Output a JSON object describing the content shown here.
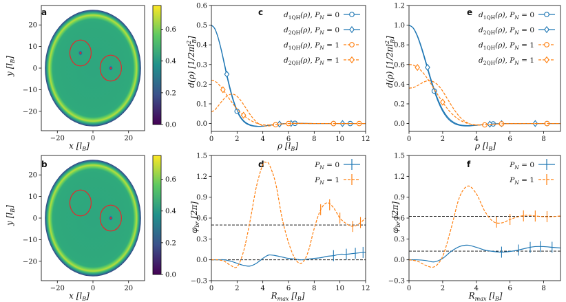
{
  "chart_data": [
    {
      "panel": "a",
      "type": "heatmap",
      "xlabel": "x [l_B]",
      "ylabel": "y [l_B]",
      "xlim": [
        -29,
        29
      ],
      "ylim": [
        -29,
        29
      ],
      "xticks": [
        -20,
        0,
        20
      ],
      "yticks": [
        -20,
        -10,
        0,
        10,
        20
      ],
      "colorbar": {
        "range": [
          0.0,
          0.75
        ],
        "ticks": [
          "0.0",
          "0.2",
          "0.4",
          "0.6"
        ]
      },
      "disk_radius": 27,
      "circles": [
        {
          "center": [
            -7,
            7
          ],
          "radius": 6
        },
        {
          "center": [
            10,
            0
          ],
          "radius": 6
        }
      ],
      "holes": [
        [
          -7,
          7
        ],
        [
          10,
          0
        ]
      ]
    },
    {
      "panel": "b",
      "type": "heatmap",
      "xlabel": "x [l_B]",
      "ylabel": "y [l_B]",
      "xlim": [
        -29,
        29
      ],
      "ylim": [
        -29,
        29
      ],
      "xticks": [
        -20,
        0,
        20
      ],
      "yticks": [
        -20,
        -10,
        0,
        10,
        20
      ],
      "colorbar": {
        "range": [
          0.0,
          0.75
        ],
        "ticks": [
          "0.0",
          "0.2",
          "0.4",
          "0.6"
        ]
      },
      "disk_radius": 27,
      "circles": [
        {
          "center": [
            -7,
            7
          ],
          "radius": 6
        },
        {
          "center": [
            10,
            0
          ],
          "radius": 6
        }
      ],
      "holes": [
        [
          10,
          0
        ]
      ]
    },
    {
      "panel": "c",
      "type": "line",
      "xlabel": "ρ [l_B]",
      "ylabel": "d(ρ) [1/2πl_B²]",
      "xlim": [
        0,
        12
      ],
      "ylim": [
        -0.04,
        0.6
      ],
      "xticks": [
        "0",
        "2",
        "4",
        "6",
        "8",
        "10",
        "12"
      ],
      "yticks": [
        "0.0",
        "0.1",
        "0.2",
        "0.3",
        "0.4",
        "0.5",
        "0.6"
      ],
      "x": [
        0,
        0.25,
        0.5,
        0.75,
        1,
        1.25,
        1.5,
        1.75,
        2,
        2.25,
        2.5,
        2.75,
        3,
        3.25,
        3.5,
        3.75,
        4,
        4.25,
        4.5,
        4.75,
        5,
        5.25,
        5.5,
        5.75,
        6,
        6.5,
        7,
        8,
        9,
        10,
        11,
        12
      ],
      "series": [
        {
          "name": "d_1QH(ρ), P_N = 0",
          "color": "#1f77b4",
          "dash": false,
          "marker": "circle",
          "marker_x": [
            2,
            6.5,
            9.5,
            10.8
          ],
          "values": [
            0.5,
            0.484,
            0.441,
            0.378,
            0.303,
            0.228,
            0.161,
            0.105,
            0.062,
            0.031,
            0.011,
            -0.002,
            -0.009,
            -0.013,
            -0.015,
            -0.015,
            -0.014,
            -0.012,
            -0.009,
            -0.006,
            -0.004,
            -0.002,
            -0.001,
            0.0,
            0.001,
            0.001,
            0.0,
            0.0,
            0.0,
            0.0,
            0.0,
            0.0
          ]
        },
        {
          "name": "d_2QH(ρ), P_N = 0",
          "color": "#1f77b4",
          "dash": false,
          "marker": "diamond",
          "marker_x": [
            1.2,
            5.3,
            6.2,
            10.2
          ],
          "values": [
            0.5,
            0.484,
            0.442,
            0.381,
            0.309,
            0.236,
            0.169,
            0.112,
            0.068,
            0.036,
            0.015,
            0.002,
            -0.006,
            -0.011,
            -0.013,
            -0.014,
            -0.013,
            -0.011,
            -0.009,
            -0.007,
            -0.005,
            -0.003,
            -0.002,
            -0.001,
            0.0,
            0.001,
            0.001,
            0.0,
            0.0,
            0.0,
            0.0,
            0.0
          ]
        },
        {
          "name": "d_1QH(ρ), P_N = 1",
          "color": "#ff7f0e",
          "dash": true,
          "marker": "circle",
          "marker_x": [
            5,
            6,
            9.5,
            11.5
          ],
          "values": [
            0.06,
            0.068,
            0.087,
            0.108,
            0.127,
            0.141,
            0.149,
            0.148,
            0.138,
            0.12,
            0.097,
            0.072,
            0.047,
            0.026,
            0.008,
            -0.004,
            -0.011,
            -0.013,
            -0.012,
            -0.009,
            -0.006,
            -0.004,
            -0.002,
            -0.001,
            0.0,
            0.001,
            0.001,
            0.0,
            0.0,
            0.0,
            0.0,
            0.0
          ]
        },
        {
          "name": "d_2QH(ρ), P_N = 1",
          "color": "#ff7f0e",
          "dash": true,
          "marker": "diamond",
          "marker_x": [
            0.9,
            2.5
          ],
          "values": [
            0.22,
            0.216,
            0.204,
            0.185,
            0.163,
            0.139,
            0.116,
            0.094,
            0.074,
            0.057,
            0.042,
            0.029,
            0.018,
            0.009,
            0.002,
            -0.003,
            -0.006,
            -0.007,
            -0.007,
            -0.006,
            -0.004,
            -0.003,
            -0.002,
            -0.001,
            0.0,
            0.0,
            0.0,
            0.0,
            0.0,
            0.0,
            0.0,
            0.0
          ]
        }
      ],
      "legend_loc": "upper right"
    },
    {
      "panel": "d",
      "type": "line",
      "xlabel": "R_max [l_B]",
      "ylabel": "φ_br [2π]",
      "xlim": [
        0,
        12
      ],
      "ylim": [
        -0.3,
        1.5
      ],
      "xticks": [
        "0",
        "2",
        "4",
        "6",
        "8",
        "10",
        "12"
      ],
      "yticks": [
        "-0.3",
        "0.0",
        "0.3",
        "0.6",
        "0.9",
        "1.2",
        "1.5"
      ],
      "hlines": [
        0.0,
        0.5
      ],
      "x": [
        0,
        0.5,
        1,
        1.5,
        2,
        2.5,
        3,
        3.5,
        4,
        4.25,
        4.5,
        5,
        5.5,
        6,
        6.5,
        7,
        7.5,
        8,
        8.5,
        9,
        9.5,
        10,
        10.5,
        11,
        11.5,
        12
      ],
      "series": [
        {
          "name": "P_N = 0",
          "color": "#1f77b4",
          "dash": false,
          "values": [
            0.0,
            0.0,
            0.0,
            -0.02,
            -0.05,
            -0.08,
            -0.09,
            -0.05,
            0.02,
            0.05,
            0.07,
            0.06,
            0.04,
            0.02,
            0.01,
            0.0,
            0.01,
            0.02,
            0.03,
            0.05,
            0.06,
            0.08,
            0.08,
            0.09,
            0.1,
            0.11
          ],
          "errorbar_x": [
            9.5,
            10.5,
            11.2,
            11.8
          ]
        },
        {
          "name": "P_N = 1",
          "color": "#ff7f0e",
          "dash": true,
          "values": [
            0.0,
            0.0,
            -0.02,
            -0.08,
            -0.1,
            0.12,
            0.55,
            1.05,
            1.37,
            1.4,
            1.37,
            1.1,
            0.6,
            0.25,
            0.02,
            -0.05,
            0.1,
            0.45,
            0.72,
            0.82,
            0.75,
            0.6,
            0.52,
            0.48,
            0.52,
            0.6
          ],
          "errorbar_x": [
            8.5,
            9.2,
            10,
            11,
            11.6
          ]
        }
      ],
      "legend_loc": "upper right"
    },
    {
      "panel": "e",
      "type": "line",
      "xlabel": "ρ [l_B]",
      "ylabel": "d(ρ) [1/2πl_B²]",
      "xlim": [
        0,
        9
      ],
      "ylim": [
        -0.08,
        1.2
      ],
      "xticks": [
        "0",
        "2",
        "4",
        "6",
        "8"
      ],
      "yticks": [
        "0.0",
        "0.2",
        "0.4",
        "0.6",
        "0.8",
        "1.0",
        "1.2"
      ],
      "x": [
        0,
        0.25,
        0.5,
        0.75,
        1,
        1.25,
        1.5,
        1.75,
        2,
        2.25,
        2.5,
        2.75,
        3,
        3.25,
        3.5,
        3.75,
        4,
        4.5,
        5,
        5.5,
        6,
        7,
        8,
        9
      ],
      "series": [
        {
          "name": "d_1QH(ρ), P_N = 0",
          "color": "#1f77b4",
          "dash": false,
          "marker": "circle",
          "marker_x": [
            1.5,
            5,
            8.2
          ],
          "values": [
            1.0,
            0.97,
            0.885,
            0.76,
            0.615,
            0.465,
            0.33,
            0.215,
            0.125,
            0.062,
            0.02,
            -0.005,
            -0.018,
            -0.024,
            -0.025,
            -0.022,
            -0.018,
            -0.01,
            -0.004,
            -0.001,
            0.0,
            0.0,
            0.0,
            0.0
          ]
        },
        {
          "name": "d_2QH(ρ), P_N = 0",
          "color": "#1f77b4",
          "dash": false,
          "marker": "diamond",
          "marker_x": [
            1.1,
            4.8,
            5.5,
            7.5
          ],
          "values": [
            1.0,
            0.972,
            0.892,
            0.772,
            0.63,
            0.482,
            0.347,
            0.232,
            0.141,
            0.076,
            0.031,
            0.004,
            -0.012,
            -0.019,
            -0.021,
            -0.02,
            -0.017,
            -0.01,
            -0.004,
            -0.001,
            0.0,
            0.0,
            0.0,
            0.0
          ]
        },
        {
          "name": "d_1QH(ρ), P_N = 1",
          "color": "#ff7f0e",
          "dash": true,
          "marker": "circle",
          "marker_x": [
            4.5,
            5.5,
            8.2
          ],
          "values": [
            0.36,
            0.365,
            0.385,
            0.41,
            0.43,
            0.435,
            0.42,
            0.385,
            0.33,
            0.26,
            0.19,
            0.125,
            0.07,
            0.03,
            0.005,
            -0.01,
            -0.016,
            -0.014,
            -0.008,
            -0.003,
            -0.001,
            0.0,
            0.0,
            0.0
          ]
        },
        {
          "name": "d_2QH(ρ), P_N = 1",
          "color": "#ff7f0e",
          "dash": true,
          "marker": "diamond",
          "marker_x": [
            0.5,
            2
          ],
          "values": [
            0.6,
            0.594,
            0.57,
            0.532,
            0.48,
            0.418,
            0.35,
            0.282,
            0.217,
            0.158,
            0.108,
            0.068,
            0.037,
            0.015,
            0.0,
            -0.009,
            -0.013,
            -0.012,
            -0.007,
            -0.003,
            -0.001,
            0.0,
            0.0,
            0.0
          ]
        }
      ],
      "legend_loc": "upper right"
    },
    {
      "panel": "f",
      "type": "line",
      "xlabel": "R_max [l_B]",
      "ylabel": "φ_br [2π]",
      "xlim": [
        0,
        9
      ],
      "ylim": [
        -0.3,
        1.5
      ],
      "xticks": [
        "0",
        "2",
        "4",
        "6",
        "8"
      ],
      "yticks": [
        "-0.3",
        "0.0",
        "0.3",
        "0.6",
        "0.9",
        "1.2",
        "1.5"
      ],
      "hlines": [
        0.125,
        0.625
      ],
      "x": [
        0,
        0.5,
        1,
        1.5,
        2,
        2.5,
        3,
        3.5,
        4,
        4.5,
        5,
        5.5,
        6,
        6.5,
        7,
        7.5,
        8,
        8.5,
        9
      ],
      "series": [
        {
          "name": "P_N = 0",
          "color": "#1f77b4",
          "dash": false,
          "values": [
            0.0,
            0.0,
            -0.01,
            -0.03,
            0.02,
            0.12,
            0.19,
            0.21,
            0.18,
            0.14,
            0.12,
            0.11,
            0.12,
            0.14,
            0.17,
            0.19,
            0.19,
            0.18,
            0.17
          ],
          "errorbar_x": [
            5.5,
            6.5,
            7.2,
            7.8,
            8.5
          ]
        },
        {
          "name": "P_N = 1",
          "color": "#ff7f0e",
          "dash": true,
          "values": [
            0.0,
            -0.02,
            -0.08,
            -0.1,
            0.05,
            0.45,
            0.9,
            1.06,
            0.95,
            0.7,
            0.55,
            0.53,
            0.58,
            0.62,
            0.64,
            0.63,
            0.62,
            0.62,
            0.63
          ],
          "errorbar_x": [
            5.2,
            6,
            6.8,
            7.5,
            8.2
          ]
        }
      ],
      "legend_loc": "upper right"
    }
  ],
  "texts": {
    "a": "a",
    "b": "b",
    "c": "c",
    "d": "d",
    "e": "e",
    "f": "f",
    "x_lb": "x [l",
    "y_lb": "y [l",
    "B": "B",
    "close": "]",
    "rho": "ρ",
    "d_rho": "d(ρ)",
    "rho_unit_open": "[l",
    "dens_unit": "[1/2πl",
    "dens_sup": "2",
    "rmax_R": "R",
    "rmax_sub": "max",
    "phi": "φ",
    "phi_sub": "br",
    "phi_unit": "[2π]",
    "leg_d1": "d",
    "leg_1qh": "1QH",
    "leg_2qh": "2QH",
    "leg_rho": "(ρ), P",
    "leg_N": "N",
    "leg_eq0": " = 0",
    "leg_eq1": " = 1",
    "leg_P": "P"
  }
}
